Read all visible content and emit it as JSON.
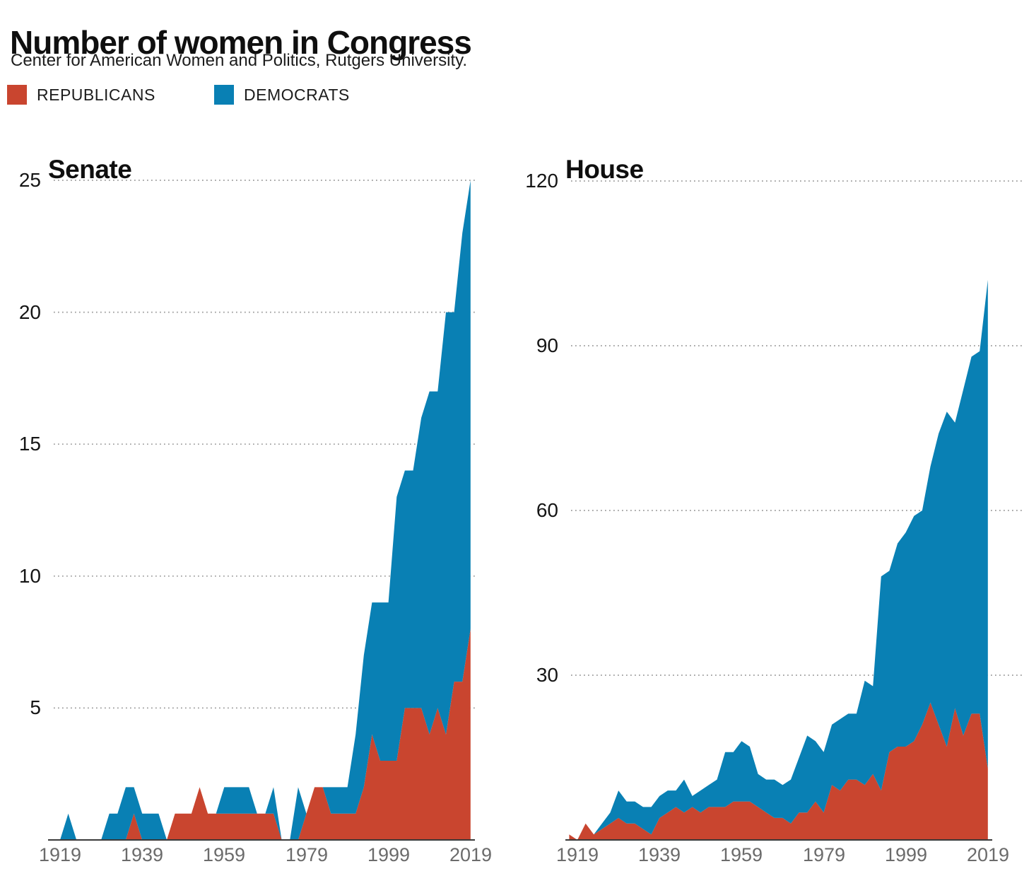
{
  "header": {
    "title": "Number of women in Congress",
    "subtitle": "Center for American Women and Politics, Rutgers University."
  },
  "legend": {
    "republicans": "REPUBLICANS",
    "democrats": "DEMOCRATS"
  },
  "colors": {
    "republican": "#c9452f",
    "democrat": "#0980b4",
    "grid": "#999999",
    "axis": "#3a3a3a",
    "xtick_text": "#6b6b6b",
    "ytick_text": "#151515"
  },
  "chart_data": [
    {
      "type": "area",
      "stacked": true,
      "title": "Senate",
      "ylabel": "",
      "xlabel": "",
      "ylim": [
        0,
        25
      ],
      "grid": "horizontal-dotted",
      "legend_position": "top",
      "x": [
        1917,
        1919,
        1921,
        1923,
        1925,
        1927,
        1929,
        1931,
        1933,
        1935,
        1937,
        1939,
        1941,
        1943,
        1945,
        1947,
        1949,
        1951,
        1953,
        1955,
        1957,
        1959,
        1961,
        1963,
        1965,
        1967,
        1969,
        1971,
        1973,
        1975,
        1977,
        1979,
        1981,
        1983,
        1985,
        1987,
        1989,
        1991,
        1993,
        1995,
        1997,
        1999,
        2001,
        2003,
        2005,
        2007,
        2009,
        2011,
        2013,
        2015,
        2017,
        2019
      ],
      "yticks": [
        25,
        20,
        15,
        10,
        5
      ],
      "xticks": [
        1919,
        1939,
        1959,
        1979,
        1999,
        2019
      ],
      "series": [
        {
          "name": "Republicans",
          "values": [
            0,
            0,
            0,
            0,
            0,
            0,
            0,
            0,
            0,
            0,
            1,
            0,
            0,
            0,
            0,
            1,
            1,
            1,
            2,
            1,
            1,
            1,
            1,
            1,
            1,
            1,
            1,
            1,
            0,
            0,
            0,
            1,
            2,
            2,
            1,
            1,
            1,
            1,
            2,
            4,
            3,
            3,
            3,
            5,
            5,
            5,
            4,
            5,
            4,
            6,
            6,
            8
          ]
        },
        {
          "name": "Democrats",
          "values": [
            0,
            0,
            1,
            0,
            0,
            0,
            0,
            1,
            1,
            2,
            1,
            1,
            1,
            1,
            0,
            0,
            0,
            0,
            0,
            0,
            0,
            1,
            1,
            1,
            1,
            0,
            0,
            1,
            0,
            0,
            2,
            0,
            0,
            0,
            1,
            1,
            1,
            3,
            5,
            5,
            6,
            6,
            10,
            9,
            9,
            11,
            13,
            12,
            16,
            14,
            17,
            17
          ]
        }
      ]
    },
    {
      "type": "area",
      "stacked": true,
      "title": "House",
      "ylabel": "",
      "xlabel": "",
      "ylim": [
        0,
        120
      ],
      "grid": "horizontal-dotted",
      "legend_position": "top",
      "x": [
        1917,
        1919,
        1921,
        1923,
        1925,
        1927,
        1929,
        1931,
        1933,
        1935,
        1937,
        1939,
        1941,
        1943,
        1945,
        1947,
        1949,
        1951,
        1953,
        1955,
        1957,
        1959,
        1961,
        1963,
        1965,
        1967,
        1969,
        1971,
        1973,
        1975,
        1977,
        1979,
        1981,
        1983,
        1985,
        1987,
        1989,
        1991,
        1993,
        1995,
        1997,
        1999,
        2001,
        2003,
        2005,
        2007,
        2009,
        2011,
        2013,
        2015,
        2017,
        2019
      ],
      "yticks": [
        120,
        90,
        60,
        30
      ],
      "xticks": [
        1919,
        1939,
        1959,
        1979,
        1999,
        2019
      ],
      "series": [
        {
          "name": "Republicans",
          "values": [
            1,
            0,
            3,
            1,
            2,
            3,
            4,
            3,
            3,
            2,
            1,
            4,
            5,
            6,
            5,
            6,
            5,
            6,
            6,
            6,
            7,
            7,
            7,
            6,
            5,
            4,
            4,
            3,
            5,
            5,
            7,
            5,
            10,
            9,
            11,
            11,
            10,
            12,
            9,
            16,
            17,
            17,
            18,
            21,
            25,
            21,
            17,
            24,
            19,
            23,
            23,
            13
          ]
        },
        {
          "name": "Democrats",
          "values": [
            0,
            0,
            0,
            0,
            1,
            2,
            5,
            4,
            4,
            4,
            5,
            4,
            4,
            3,
            6,
            2,
            4,
            4,
            5,
            10,
            9,
            11,
            10,
            6,
            6,
            7,
            6,
            8,
            10,
            14,
            11,
            11,
            11,
            13,
            12,
            12,
            19,
            16,
            39,
            33,
            37,
            39,
            41,
            39,
            43,
            53,
            61,
            52,
            63,
            65,
            66,
            89
          ]
        }
      ]
    }
  ]
}
